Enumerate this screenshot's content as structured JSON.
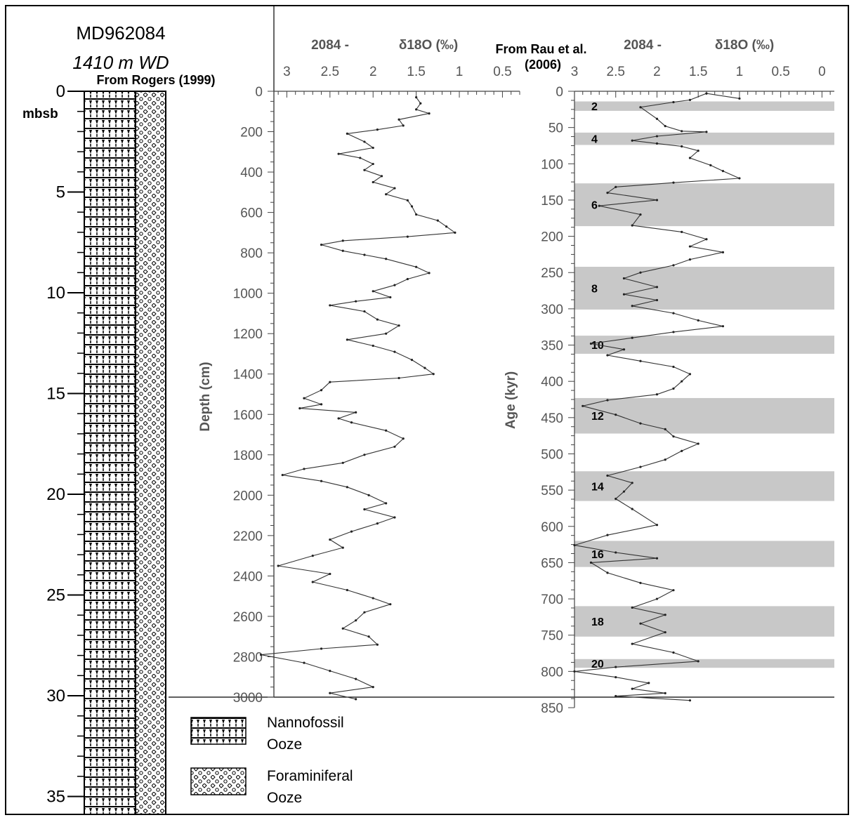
{
  "core_log": {
    "title_line1": "MD962084",
    "title_line2": "1410 m WD",
    "source": "From Rogers (1999)",
    "unit_label": "mbsb",
    "depth_ticks": [
      "0",
      "5",
      "10",
      "15",
      "20",
      "25",
      "30",
      "35"
    ],
    "depth_range": [
      0,
      35.5
    ]
  },
  "legend": {
    "items": [
      {
        "line1": "Nannofossil",
        "line2": "Ooze",
        "pattern": "nannofossil-pattern"
      },
      {
        "line1": "Foraminiferal",
        "line2": "Ooze",
        "pattern": "foraminiferal-pattern"
      }
    ]
  },
  "chart_data": [
    {
      "type": "line",
      "core_label": "2084 -",
      "x_title": "δ18O (‰)",
      "y_title": "Depth (cm)",
      "x_ticks": [
        "3",
        "2.5",
        "2",
        "1.5",
        "1",
        "0.5"
      ],
      "y_ticks": [
        "0",
        "200",
        "400",
        "600",
        "800",
        "1000",
        "1200",
        "1400",
        "1600",
        "1800",
        "2000",
        "2200",
        "2400",
        "2600",
        "2800",
        "3000"
      ],
      "xlim": [
        3.15,
        0.3
      ],
      "ylim": [
        0,
        3000
      ],
      "x_reversed": true,
      "series": [
        {
          "points": [
            [
              1.5,
              30
            ],
            [
              1.45,
              60
            ],
            [
              1.5,
              90
            ],
            [
              1.35,
              110
            ],
            [
              1.7,
              140
            ],
            [
              1.65,
              170
            ],
            [
              1.95,
              190
            ],
            [
              2.3,
              210
            ],
            [
              2.1,
              250
            ],
            [
              2.0,
              280
            ],
            [
              2.4,
              310
            ],
            [
              2.15,
              330
            ],
            [
              2.0,
              360
            ],
            [
              2.1,
              390
            ],
            [
              1.9,
              420
            ],
            [
              2.0,
              450
            ],
            [
              1.75,
              480
            ],
            [
              1.85,
              510
            ],
            [
              1.6,
              540
            ],
            [
              1.55,
              570
            ],
            [
              1.5,
              610
            ],
            [
              1.25,
              640
            ],
            [
              1.15,
              670
            ],
            [
              1.05,
              700
            ],
            [
              1.6,
              720
            ],
            [
              2.35,
              740
            ],
            [
              2.6,
              760
            ],
            [
              2.35,
              790
            ],
            [
              2.1,
              810
            ],
            [
              1.85,
              830
            ],
            [
              1.5,
              870
            ],
            [
              1.35,
              900
            ],
            [
              1.6,
              930
            ],
            [
              1.75,
              960
            ],
            [
              2.0,
              990
            ],
            [
              1.8,
              1020
            ],
            [
              2.2,
              1040
            ],
            [
              2.5,
              1060
            ],
            [
              2.1,
              1090
            ],
            [
              1.95,
              1130
            ],
            [
              1.7,
              1160
            ],
            [
              1.85,
              1200
            ],
            [
              2.3,
              1230
            ],
            [
              2.0,
              1260
            ],
            [
              1.75,
              1290
            ],
            [
              1.55,
              1330
            ],
            [
              1.4,
              1370
            ],
            [
              1.3,
              1400
            ],
            [
              1.7,
              1420
            ],
            [
              2.5,
              1440
            ],
            [
              2.6,
              1480
            ],
            [
              2.8,
              1520
            ],
            [
              2.6,
              1550
            ],
            [
              2.85,
              1570
            ],
            [
              2.2,
              1590
            ],
            [
              2.4,
              1620
            ],
            [
              2.25,
              1640
            ],
            [
              1.85,
              1680
            ],
            [
              1.65,
              1720
            ],
            [
              1.75,
              1760
            ],
            [
              2.1,
              1800
            ],
            [
              2.35,
              1840
            ],
            [
              2.8,
              1870
            ],
            [
              3.05,
              1900
            ],
            [
              2.6,
              1930
            ],
            [
              2.3,
              1960
            ],
            [
              2.05,
              2000
            ],
            [
              1.85,
              2040
            ],
            [
              2.1,
              2070
            ],
            [
              1.75,
              2110
            ],
            [
              1.95,
              2140
            ],
            [
              2.25,
              2180
            ],
            [
              2.5,
              2220
            ],
            [
              2.35,
              2260
            ],
            [
              2.7,
              2300
            ],
            [
              3.1,
              2350
            ],
            [
              2.5,
              2390
            ],
            [
              2.7,
              2430
            ],
            [
              2.3,
              2470
            ],
            [
              2.0,
              2510
            ],
            [
              1.8,
              2540
            ],
            [
              2.1,
              2580
            ],
            [
              2.2,
              2620
            ],
            [
              2.35,
              2660
            ],
            [
              2.05,
              2700
            ],
            [
              1.95,
              2740
            ],
            [
              2.6,
              2760
            ],
            [
              3.3,
              2790
            ],
            [
              2.8,
              2830
            ],
            [
              2.5,
              2870
            ],
            [
              2.2,
              2910
            ],
            [
              2.0,
              2950
            ],
            [
              2.5,
              2980
            ],
            [
              2.2,
              3010
            ]
          ]
        }
      ]
    },
    {
      "type": "line",
      "core_label": "2084 -",
      "x_title": "δ18O (‰)",
      "y_title": "Age (kyr)",
      "source": "From Rau et al. (2006)",
      "x_ticks": [
        "3",
        "2.5",
        "2",
        "1.5",
        "1",
        "0.5",
        "0"
      ],
      "y_ticks": [
        "0",
        "50",
        "100",
        "150",
        "200",
        "250",
        "300",
        "350",
        "400",
        "450",
        "500",
        "550",
        "600",
        "650",
        "700",
        "750",
        "800",
        "850"
      ],
      "xlim": [
        3.0,
        -0.15
      ],
      "ylim": [
        0,
        850
      ],
      "x_reversed": true,
      "isotope_stages": [
        {
          "label": "2",
          "start": 14,
          "end": 27
        },
        {
          "label": "4",
          "start": 57,
          "end": 74
        },
        {
          "label": "6",
          "start": 127,
          "end": 186
        },
        {
          "label": "8",
          "start": 242,
          "end": 301
        },
        {
          "label": "10",
          "start": 337,
          "end": 362
        },
        {
          "label": "12",
          "start": 423,
          "end": 472
        },
        {
          "label": "14",
          "start": 524,
          "end": 565
        },
        {
          "label": "16",
          "start": 620,
          "end": 656
        },
        {
          "label": "18",
          "start": 710,
          "end": 752
        },
        {
          "label": "20",
          "start": 783,
          "end": 795
        }
      ],
      "series": [
        {
          "points": [
            [
              1.0,
              10
            ],
            [
              1.4,
              3
            ],
            [
              1.6,
              12
            ],
            [
              1.8,
              15
            ],
            [
              2.2,
              22
            ],
            [
              2.0,
              38
            ],
            [
              1.9,
              48
            ],
            [
              1.7,
              55
            ],
            [
              1.4,
              56
            ],
            [
              2.0,
              62
            ],
            [
              2.3,
              68
            ],
            [
              2.0,
              72
            ],
            [
              1.7,
              76
            ],
            [
              1.5,
              82
            ],
            [
              1.6,
              92
            ],
            [
              1.35,
              102
            ],
            [
              1.2,
              110
            ],
            [
              1.0,
              120
            ],
            [
              1.8,
              126
            ],
            [
              2.5,
              132
            ],
            [
              2.6,
              140
            ],
            [
              2.0,
              150
            ],
            [
              2.7,
              158
            ],
            [
              2.2,
              170
            ],
            [
              2.3,
              185
            ],
            [
              1.7,
              194
            ],
            [
              1.4,
              204
            ],
            [
              1.6,
              214
            ],
            [
              1.2,
              222
            ],
            [
              1.6,
              232
            ],
            [
              1.8,
              240
            ],
            [
              2.2,
              250
            ],
            [
              2.4,
              258
            ],
            [
              2.0,
              270
            ],
            [
              2.4,
              280
            ],
            [
              2.0,
              288
            ],
            [
              2.3,
              296
            ],
            [
              1.8,
              306
            ],
            [
              1.5,
              316
            ],
            [
              1.2,
              324
            ],
            [
              1.8,
              332
            ],
            [
              2.3,
              340
            ],
            [
              2.8,
              348
            ],
            [
              2.4,
              356
            ],
            [
              2.6,
              364
            ],
            [
              2.2,
              372
            ],
            [
              1.8,
              380
            ],
            [
              1.6,
              390
            ],
            [
              1.7,
              400
            ],
            [
              1.8,
              410
            ],
            [
              2.0,
              418
            ],
            [
              2.6,
              426
            ],
            [
              2.9,
              434
            ],
            [
              2.5,
              446
            ],
            [
              2.2,
              458
            ],
            [
              1.9,
              466
            ],
            [
              1.8,
              476
            ],
            [
              1.5,
              486
            ],
            [
              1.7,
              496
            ],
            [
              1.9,
              508
            ],
            [
              2.2,
              518
            ],
            [
              2.6,
              530
            ],
            [
              2.3,
              540
            ],
            [
              2.4,
              552
            ],
            [
              2.5,
              562
            ],
            [
              2.3,
              576
            ],
            [
              2.0,
              598
            ],
            [
              2.6,
              612
            ],
            [
              3.0,
              626
            ],
            [
              2.5,
              636
            ],
            [
              2.0,
              644
            ],
            [
              2.8,
              650
            ],
            [
              2.6,
              664
            ],
            [
              2.2,
              678
            ],
            [
              1.8,
              688
            ],
            [
              2.0,
              700
            ],
            [
              2.3,
              712
            ],
            [
              1.9,
              722
            ],
            [
              2.2,
              734
            ],
            [
              1.9,
              746
            ],
            [
              2.3,
              762
            ],
            [
              1.8,
              774
            ],
            [
              1.5,
              786
            ],
            [
              2.5,
              794
            ],
            [
              3.0,
              800
            ],
            [
              2.5,
              808
            ],
            [
              2.1,
              816
            ],
            [
              2.3,
              824
            ],
            [
              1.9,
              830
            ],
            [
              2.5,
              834
            ],
            [
              1.6,
              840
            ]
          ]
        }
      ]
    }
  ]
}
